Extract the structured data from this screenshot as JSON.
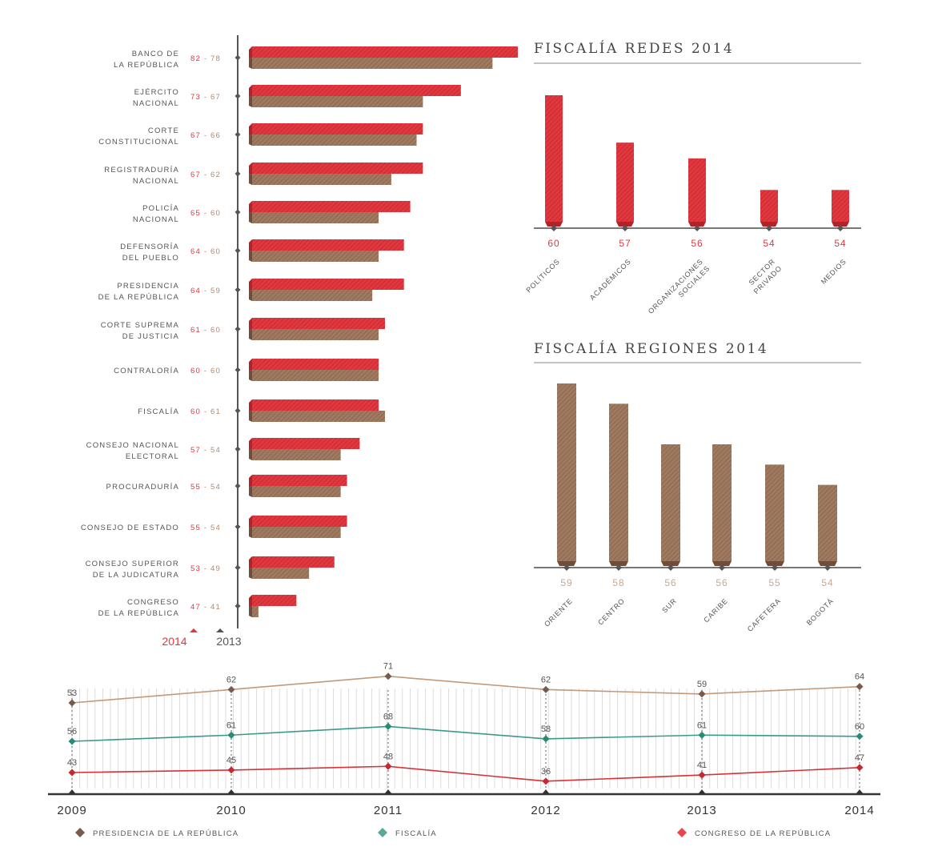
{
  "colors": {
    "red": "#e0383e",
    "brown": "#a07a60",
    "teal": "#3a9a88",
    "leg_brown": "#7a5a4a",
    "leg_teal": "#5aa898",
    "leg_red": "#e8474d",
    "axis": "#555555",
    "grid": "#d8d4d0"
  },
  "chart_data": [
    {
      "type": "bar",
      "orientation": "horizontal",
      "title": "",
      "categories": [
        [
          "BANCO DE",
          "LA REPÚBLICA"
        ],
        [
          "EJÉRCITO",
          "NACIONAL"
        ],
        [
          "CORTE",
          "CONSTITUCIONAL"
        ],
        [
          "REGISTRADURÍA",
          "NACIONAL"
        ],
        [
          "POLICÍA",
          "NACIONAL"
        ],
        [
          "DEFENSORÍA",
          "DEL PUEBLO"
        ],
        [
          "PRESIDENCIA",
          "DE LA REPÚBLICA"
        ],
        [
          "CORTE SUPREMA",
          "DE JUSTICIA"
        ],
        [
          "CONTRALORÍA"
        ],
        [
          "FISCALÍA"
        ],
        [
          "CONSEJO NACIONAL",
          "ELECTORAL"
        ],
        [
          "PROCURADURÍA"
        ],
        [
          "CONSEJO DE ESTADO"
        ],
        [
          "CONSEJO SUPERIOR",
          "DE LA JUDICATURA"
        ],
        [
          "CONGRESO",
          "DE LA REPÚBLICA"
        ]
      ],
      "series": [
        {
          "name": "2014",
          "values": [
            82,
            73,
            67,
            67,
            65,
            64,
            64,
            61,
            60,
            60,
            57,
            55,
            55,
            53,
            47
          ]
        },
        {
          "name": "2013",
          "values": [
            78,
            67,
            66,
            62,
            60,
            60,
            59,
            60,
            60,
            61,
            54,
            54,
            54,
            49,
            41
          ]
        }
      ],
      "xlim": [
        40,
        82
      ],
      "legend": [
        "2014",
        "2013"
      ]
    },
    {
      "type": "bar",
      "title": "FISCALÍA REDES 2014",
      "categories": [
        [
          "POLÍTICOS"
        ],
        [
          "ACADÉMICOS"
        ],
        [
          "ORGANIZACIONES",
          "SOCIALES"
        ],
        [
          "SECTOR",
          "PRIVADO"
        ],
        [
          "MEDIOS"
        ]
      ],
      "values": [
        60,
        57,
        56,
        54,
        54
      ],
      "ylim": [
        53,
        60
      ]
    },
    {
      "type": "bar",
      "title": "FISCALÍA REGIONES 2014",
      "categories": [
        [
          "ORIENTE"
        ],
        [
          "CENTRO"
        ],
        [
          "SUR"
        ],
        [
          "CARIBE"
        ],
        [
          "CAFETERA"
        ],
        [
          "BOGOTÁ"
        ]
      ],
      "values": [
        59,
        58,
        56,
        56,
        55,
        54
      ],
      "ylim": [
        53,
        59
      ]
    },
    {
      "type": "line",
      "title": "",
      "x": [
        "2009",
        "2010",
        "2011",
        "2012",
        "2013",
        "2014"
      ],
      "series": [
        {
          "name": "PRESIDENCIA DE LA REPÚBLICA",
          "values": [
            53,
            62,
            71,
            62,
            59,
            64
          ]
        },
        {
          "name": "FISCALÍA",
          "values": [
            56,
            61,
            68,
            58,
            61,
            60
          ]
        },
        {
          "name": "CONGRESO DE LA REPÚBLICA",
          "values": [
            43,
            45,
            48,
            36,
            41,
            47
          ]
        }
      ],
      "legend_placement": "bottom"
    }
  ]
}
